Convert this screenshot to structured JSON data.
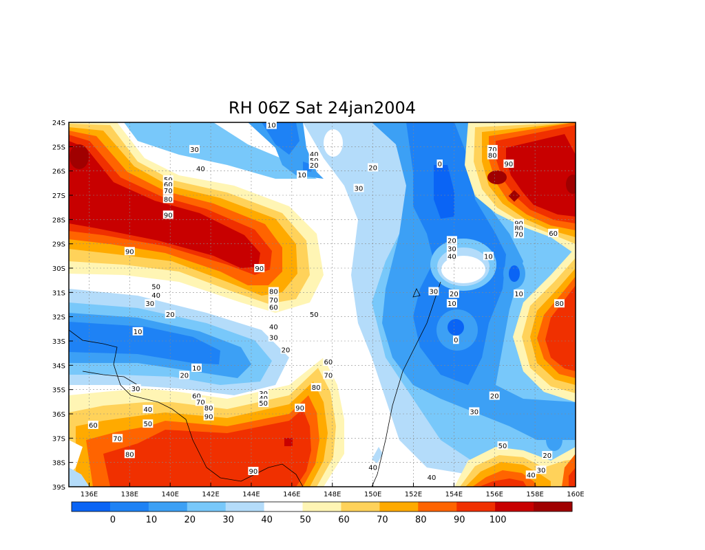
{
  "title": "RH 06Z Sat 24jan2004",
  "lon_labels": [
    "136E",
    "138E",
    "140E",
    "142E",
    "144E",
    "146E",
    "148E",
    "150E",
    "152E",
    "154E",
    "156E",
    "158E",
    "160E"
  ],
  "lat_labels": [
    "24S",
    "25S",
    "26S",
    "27S",
    "28S",
    "29S",
    "30S",
    "31S",
    "32S",
    "33S",
    "34S",
    "35S",
    "36S",
    "37S",
    "38S",
    "39S"
  ],
  "colorbar": {
    "labels": [
      "0",
      "10",
      "20",
      "30",
      "40",
      "50",
      "60",
      "70",
      "80",
      "90",
      "100"
    ],
    "colors": [
      "#0a64f5",
      "#1e82f5",
      "#3ca0f5",
      "#78c8fa",
      "#b4dcfa",
      "#ffffff",
      "#fff5b4",
      "#ffd25a",
      "#ffaa00",
      "#ff6400",
      "#f03000",
      "#c80000",
      "#a00000"
    ]
  },
  "contour_labels": [
    {
      "t": "10",
      "lon": 145.0,
      "lat": 24.1
    },
    {
      "t": "30",
      "lon": 141.2,
      "lat": 25.1
    },
    {
      "t": "40",
      "lon": 141.5,
      "lat": 25.9
    },
    {
      "t": "40",
      "lon": 147.1,
      "lat": 25.3
    },
    {
      "t": "50",
      "lon": 147.1,
      "lat": 25.55
    },
    {
      "t": "20",
      "lon": 147.1,
      "lat": 25.75
    },
    {
      "t": "10",
      "lon": 146.5,
      "lat": 26.15
    },
    {
      "t": "20",
      "lon": 150.0,
      "lat": 25.85
    },
    {
      "t": "30",
      "lon": 149.3,
      "lat": 26.7
    },
    {
      "t": "0",
      "lon": 153.3,
      "lat": 25.7
    },
    {
      "t": "70",
      "lon": 155.9,
      "lat": 25.1
    },
    {
      "t": "80",
      "lon": 155.9,
      "lat": 25.35
    },
    {
      "t": "90",
      "lon": 156.7,
      "lat": 25.7
    },
    {
      "t": "50",
      "lon": 139.9,
      "lat": 26.35
    },
    {
      "t": "60",
      "lon": 139.9,
      "lat": 26.55
    },
    {
      "t": "70",
      "lon": 139.9,
      "lat": 26.8
    },
    {
      "t": "80",
      "lon": 139.9,
      "lat": 27.15
    },
    {
      "t": "90",
      "lon": 139.9,
      "lat": 27.8
    },
    {
      "t": "90",
      "lon": 138.0,
      "lat": 29.3
    },
    {
      "t": "90",
      "lon": 144.4,
      "lat": 30.0
    },
    {
      "t": "20",
      "lon": 153.9,
      "lat": 28.85
    },
    {
      "t": "30",
      "lon": 153.9,
      "lat": 29.2
    },
    {
      "t": "40",
      "lon": 153.9,
      "lat": 29.5
    },
    {
      "t": "10",
      "lon": 155.7,
      "lat": 29.5
    },
    {
      "t": "90",
      "lon": 157.2,
      "lat": 28.15
    },
    {
      "t": "80",
      "lon": 157.2,
      "lat": 28.35
    },
    {
      "t": "70",
      "lon": 157.2,
      "lat": 28.6
    },
    {
      "t": "60",
      "lon": 158.9,
      "lat": 28.55
    },
    {
      "t": "10",
      "lon": 157.2,
      "lat": 31.05
    },
    {
      "t": "30",
      "lon": 153.0,
      "lat": 30.95
    },
    {
      "t": "20",
      "lon": 154.0,
      "lat": 31.05
    },
    {
      "t": "10",
      "lon": 153.9,
      "lat": 31.45
    },
    {
      "t": "0",
      "lon": 154.1,
      "lat": 32.95
    },
    {
      "t": "80",
      "lon": 159.2,
      "lat": 31.45
    },
    {
      "t": "50",
      "lon": 139.3,
      "lat": 30.75
    },
    {
      "t": "40",
      "lon": 139.3,
      "lat": 31.1
    },
    {
      "t": "30",
      "lon": 139.0,
      "lat": 31.45
    },
    {
      "t": "20",
      "lon": 140.0,
      "lat": 31.9
    },
    {
      "t": "10",
      "lon": 138.4,
      "lat": 32.6
    },
    {
      "t": "80",
      "lon": 145.1,
      "lat": 30.95
    },
    {
      "t": "70",
      "lon": 145.1,
      "lat": 31.3
    },
    {
      "t": "60",
      "lon": 145.1,
      "lat": 31.6
    },
    {
      "t": "50",
      "lon": 147.1,
      "lat": 31.9
    },
    {
      "t": "40",
      "lon": 145.1,
      "lat": 32.4
    },
    {
      "t": "30",
      "lon": 145.1,
      "lat": 32.85
    },
    {
      "t": "20",
      "lon": 145.7,
      "lat": 33.35
    },
    {
      "t": "60",
      "lon": 147.8,
      "lat": 33.85
    },
    {
      "t": "70",
      "lon": 147.8,
      "lat": 34.4
    },
    {
      "t": "80",
      "lon": 147.2,
      "lat": 34.9
    },
    {
      "t": "10",
      "lon": 141.3,
      "lat": 34.1
    },
    {
      "t": "20",
      "lon": 140.7,
      "lat": 34.4
    },
    {
      "t": "30",
      "lon": 138.3,
      "lat": 34.95
    },
    {
      "t": "30",
      "lon": 144.6,
      "lat": 35.15
    },
    {
      "t": "40",
      "lon": 144.6,
      "lat": 35.35
    },
    {
      "t": "50",
      "lon": 144.6,
      "lat": 35.55
    },
    {
      "t": "60",
      "lon": 141.3,
      "lat": 35.25
    },
    {
      "t": "70",
      "lon": 141.5,
      "lat": 35.5
    },
    {
      "t": "80",
      "lon": 141.9,
      "lat": 35.75
    },
    {
      "t": "90",
      "lon": 141.9,
      "lat": 36.1
    },
    {
      "t": "90",
      "lon": 146.4,
      "lat": 35.75
    },
    {
      "t": "40",
      "lon": 138.9,
      "lat": 35.8
    },
    {
      "t": "50",
      "lon": 138.9,
      "lat": 36.4
    },
    {
      "t": "60",
      "lon": 136.2,
      "lat": 36.45
    },
    {
      "t": "70",
      "lon": 137.4,
      "lat": 37.0
    },
    {
      "t": "80",
      "lon": 138.0,
      "lat": 37.65
    },
    {
      "t": "90",
      "lon": 144.1,
      "lat": 38.35
    },
    {
      "t": "20",
      "lon": 156.0,
      "lat": 35.25
    },
    {
      "t": "30",
      "lon": 155.0,
      "lat": 35.9
    },
    {
      "t": "50",
      "lon": 156.4,
      "lat": 37.3
    },
    {
      "t": "20",
      "lon": 158.6,
      "lat": 37.7
    },
    {
      "t": "30",
      "lon": 158.3,
      "lat": 38.3
    },
    {
      "t": "40",
      "lon": 157.8,
      "lat": 38.5
    },
    {
      "t": "40",
      "lon": 150.0,
      "lat": 38.2
    },
    {
      "t": "40",
      "lon": 152.9,
      "lat": 38.6
    }
  ]
}
